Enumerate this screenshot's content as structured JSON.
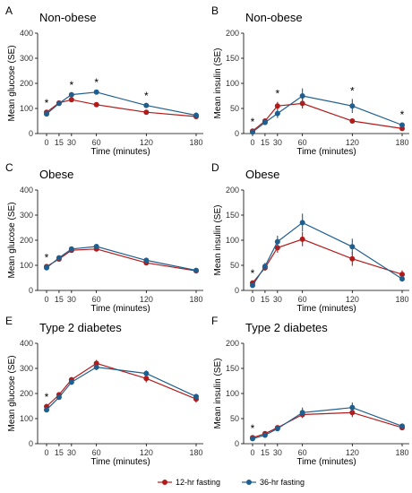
{
  "colors": {
    "series1": "#b31b1b",
    "series2": "#1f5f8f",
    "axis": "#000000",
    "star": "#000000"
  },
  "legend": {
    "placement": "bottom-center",
    "items": [
      {
        "label": "12-hr fasting",
        "color": "#b31b1b"
      },
      {
        "label": "36-hr fasting",
        "color": "#1f5f8f"
      }
    ]
  },
  "chart_data": [
    {
      "type": "line",
      "panel_letter": "A",
      "title": "Non-obese",
      "xlabel": "Time (minutes)",
      "ylabel": "Mean glucose (SE)",
      "x": [
        0,
        15,
        30,
        60,
        120,
        180
      ],
      "x_ticks": [
        "0",
        "15",
        "30",
        "60",
        "120",
        "180"
      ],
      "ylim": [
        0,
        400
      ],
      "y_ticks": [
        0,
        100,
        200,
        300,
        400
      ],
      "series": [
        {
          "name": "12-hr fasting",
          "values": [
            85,
            122,
            135,
            115,
            85,
            68
          ],
          "se": [
            4,
            4,
            5,
            5,
            4,
            3
          ]
        },
        {
          "name": "36-hr fasting",
          "values": [
            78,
            120,
            155,
            165,
            112,
            73
          ],
          "se": [
            4,
            4,
            6,
            6,
            5,
            4
          ]
        }
      ],
      "significance": [
        0,
        30,
        60,
        120
      ]
    },
    {
      "type": "line",
      "panel_letter": "B",
      "title": "Non-obese",
      "xlabel": "Time (minutes)",
      "ylabel": "Mean insulin (SE)",
      "x": [
        0,
        15,
        30,
        60,
        120,
        180
      ],
      "x_ticks": [
        "0",
        "15",
        "30",
        "60",
        "120",
        "180"
      ],
      "ylim": [
        0,
        200
      ],
      "y_ticks": [
        0,
        50,
        100,
        150,
        200
      ],
      "series": [
        {
          "name": "12-hr fasting",
          "values": [
            5,
            25,
            55,
            60,
            25,
            10
          ],
          "se": [
            2,
            4,
            8,
            10,
            3,
            2
          ]
        },
        {
          "name": "36-hr fasting",
          "values": [
            3,
            22,
            40,
            75,
            55,
            17
          ],
          "se": [
            2,
            4,
            9,
            15,
            14,
            4
          ]
        }
      ],
      "significance": [
        0,
        30,
        120,
        180
      ]
    },
    {
      "type": "line",
      "panel_letter": "C",
      "title": "Obese",
      "xlabel": "Time (minutes)",
      "ylabel": "Mean glucose (SE)",
      "x": [
        0,
        15,
        30,
        60,
        120,
        180
      ],
      "x_ticks": [
        "0",
        "15",
        "30",
        "60",
        "120",
        "180"
      ],
      "ylim": [
        0,
        400
      ],
      "y_ticks": [
        0,
        100,
        200,
        300,
        400
      ],
      "series": [
        {
          "name": "12-hr fasting",
          "values": [
            95,
            125,
            160,
            165,
            110,
            78
          ],
          "se": [
            4,
            5,
            6,
            6,
            6,
            4
          ]
        },
        {
          "name": "36-hr fasting",
          "values": [
            90,
            130,
            165,
            175,
            120,
            80
          ],
          "se": [
            4,
            5,
            6,
            7,
            6,
            4
          ]
        }
      ],
      "significance": [
        0
      ]
    },
    {
      "type": "line",
      "panel_letter": "D",
      "title": "Obese",
      "xlabel": "Time (minutes)",
      "ylabel": "Mean insulin (SE)",
      "x": [
        0,
        15,
        30,
        60,
        120,
        180
      ],
      "x_ticks": [
        "0",
        "15",
        "30",
        "60",
        "120",
        "180"
      ],
      "ylim": [
        0,
        200
      ],
      "y_ticks": [
        0,
        50,
        100,
        150,
        200
      ],
      "series": [
        {
          "name": "12-hr fasting",
          "values": [
            15,
            45,
            85,
            102,
            63,
            32
          ],
          "se": [
            3,
            6,
            10,
            14,
            14,
            8
          ]
        },
        {
          "name": "36-hr fasting",
          "values": [
            10,
            48,
            97,
            135,
            87,
            23
          ],
          "se": [
            3,
            7,
            12,
            18,
            16,
            5
          ]
        }
      ],
      "significance": [
        0
      ]
    },
    {
      "type": "line",
      "panel_letter": "E",
      "title": "Type 2 diabetes",
      "xlabel": "Time (minutes)",
      "ylabel": "Mean glucose (SE)",
      "x": [
        0,
        15,
        30,
        60,
        120,
        180
      ],
      "x_ticks": [
        "0",
        "15",
        "30",
        "60",
        "120",
        "180"
      ],
      "ylim": [
        0,
        400
      ],
      "y_ticks": [
        0,
        100,
        200,
        300,
        400
      ],
      "series": [
        {
          "name": "12-hr fasting",
          "values": [
            148,
            195,
            255,
            320,
            260,
            178
          ],
          "se": [
            6,
            8,
            10,
            14,
            16,
            14
          ]
        },
        {
          "name": "36-hr fasting",
          "values": [
            135,
            185,
            245,
            305,
            280,
            188
          ],
          "se": [
            6,
            8,
            10,
            12,
            12,
            10
          ]
        }
      ],
      "significance": [
        0
      ]
    },
    {
      "type": "line",
      "panel_letter": "F",
      "title": "Type 2 diabetes",
      "xlabel": "Time (minutes)",
      "ylabel": "Mean insulin (SE)",
      "x": [
        0,
        15,
        30,
        60,
        120,
        180
      ],
      "x_ticks": [
        "0",
        "15",
        "30",
        "60",
        "120",
        "180"
      ],
      "ylim": [
        0,
        200
      ],
      "y_ticks": [
        0,
        50,
        100,
        150,
        200
      ],
      "series": [
        {
          "name": "12-hr fasting",
          "values": [
            12,
            20,
            32,
            58,
            62,
            32
          ],
          "se": [
            2,
            3,
            4,
            7,
            9,
            5
          ]
        },
        {
          "name": "36-hr fasting",
          "values": [
            10,
            17,
            30,
            62,
            72,
            35
          ],
          "se": [
            2,
            3,
            4,
            10,
            10,
            4
          ]
        }
      ],
      "significance": [
        0
      ]
    }
  ]
}
